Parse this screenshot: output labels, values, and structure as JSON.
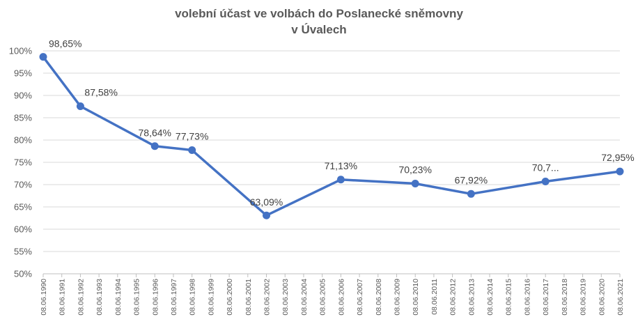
{
  "chart_data": {
    "type": "line",
    "title": [
      "volební účast ve volbách do Poslanecké sněmovny",
      "v Úvalech"
    ],
    "xlabel": "",
    "ylabel": "",
    "ylim": [
      0.5,
      1.0
    ],
    "y_ticks": [
      "50%",
      "55%",
      "60%",
      "65%",
      "70%",
      "75%",
      "80%",
      "85%",
      "90%",
      "95%",
      "100%"
    ],
    "grid": true,
    "legend": "none",
    "x": [
      "08.06.1990",
      "08.06.1991",
      "08.06.1992",
      "08.06.1993",
      "08.06.1994",
      "08.06.1995",
      "08.06.1996",
      "08.06.1997",
      "08.06.1998",
      "08.06.1999",
      "08.06.2000",
      "08.06.2001",
      "08.06.2002",
      "08.06.2003",
      "08.06.2004",
      "08.06.2005",
      "08.06.2006",
      "08.06.2007",
      "08.06.2008",
      "08.06.2009",
      "08.06.2010",
      "08.06.2011",
      "08.06.2012",
      "08.06.2013",
      "08.06.2014",
      "08.06.2015",
      "08.06.2016",
      "08.06.2017",
      "08.06.2018",
      "08.06.2019",
      "08.06.2020",
      "08.06.2021"
    ],
    "series": [
      {
        "color": "#4472C4",
        "points": [
          {
            "x": "08.06.1990",
            "y": 0.9865,
            "label": "98,65%"
          },
          {
            "x": "08.06.1992",
            "y": 0.8758,
            "label": "87,58%"
          },
          {
            "x": "08.06.1996",
            "y": 0.7864,
            "label": "78,64%"
          },
          {
            "x": "08.06.1998",
            "y": 0.7773,
            "label": "77,73%"
          },
          {
            "x": "08.06.2002",
            "y": 0.6309,
            "label": "63,09%"
          },
          {
            "x": "08.06.2006",
            "y": 0.7113,
            "label": "71,13%"
          },
          {
            "x": "08.06.2010",
            "y": 0.7023,
            "label": "70,23%"
          },
          {
            "x": "08.06.2013",
            "y": 0.6792,
            "label": "67,92%"
          },
          {
            "x": "08.06.2017",
            "y": 0.707,
            "label": "70,7..."
          },
          {
            "x": "08.06.2021",
            "y": 0.7295,
            "label": "72,95%"
          }
        ]
      }
    ]
  },
  "colors": {
    "line": "#4472C4",
    "grid": "#d9d9d9",
    "axis": "#bfbfbf",
    "text": "#595959"
  }
}
